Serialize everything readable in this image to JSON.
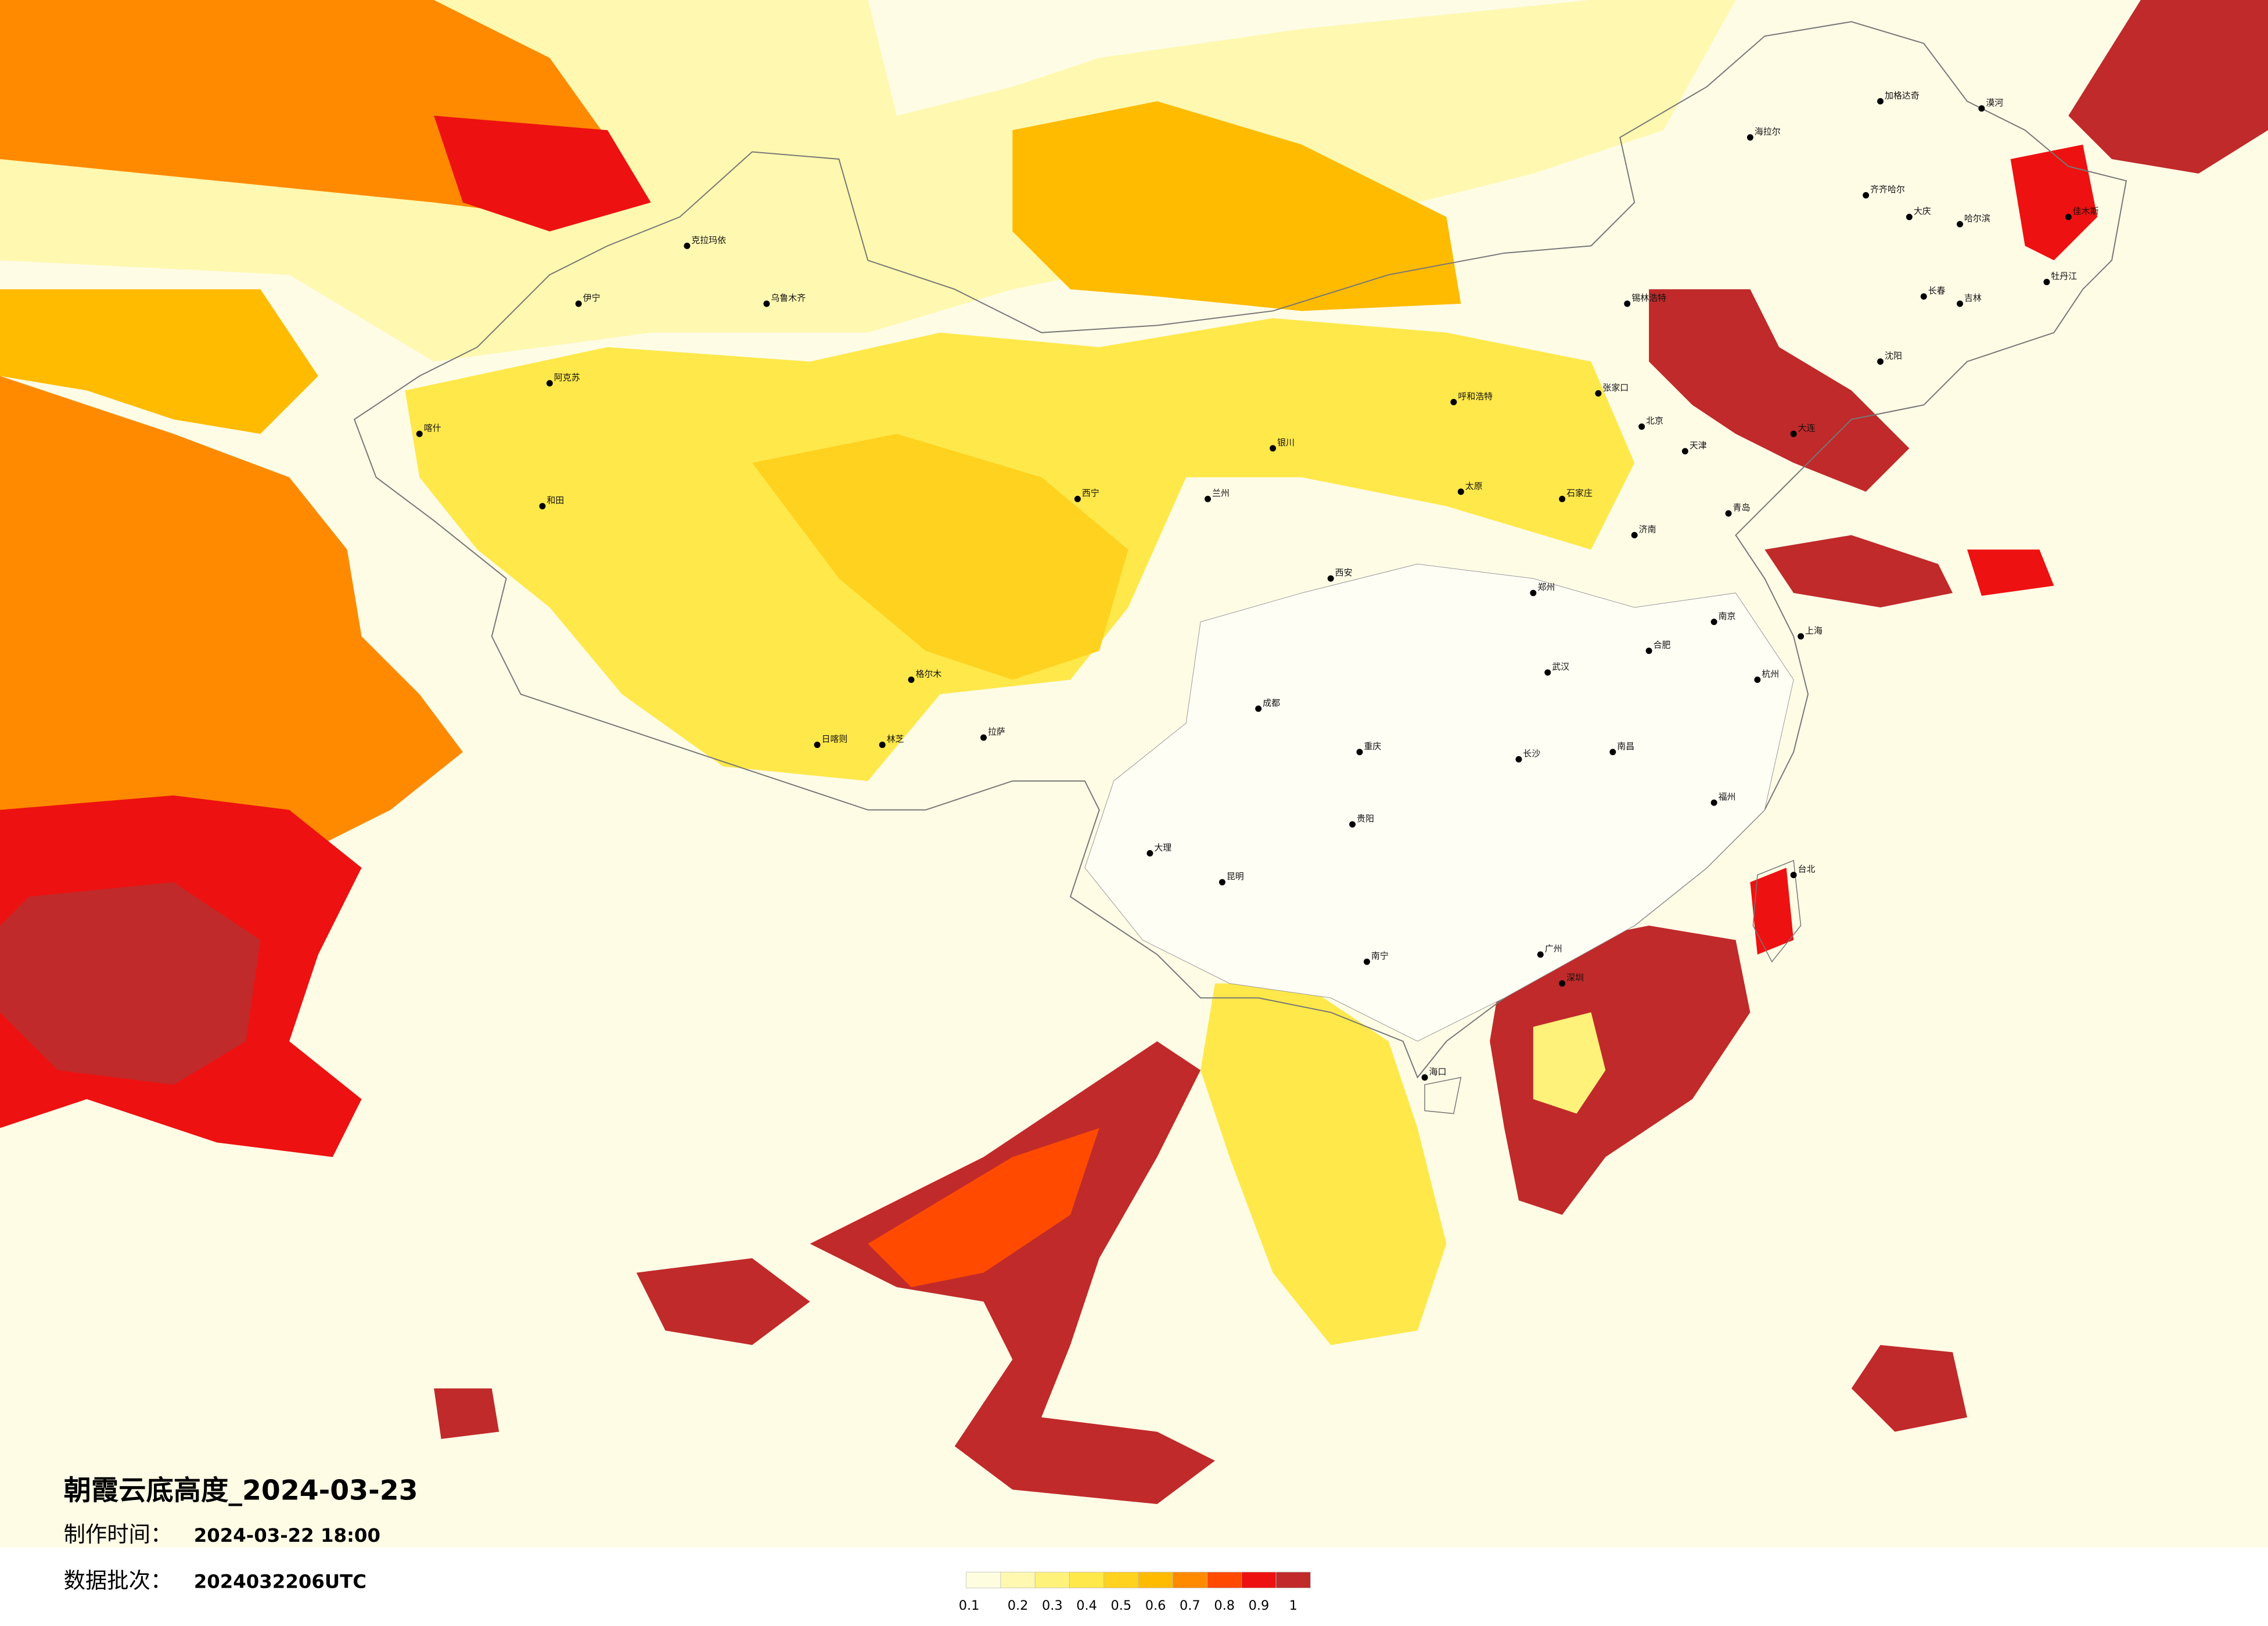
{
  "header": {
    "title": "朝霞云底高度_2024-03-23",
    "made_label": "制作时间：",
    "made_time": "2024-03-22 18:00",
    "batch_label": "数据批次：",
    "batch": "2024032206UTC"
  },
  "legend": {
    "colors": [
      "#fffde0",
      "#fff8b0",
      "#fff27a",
      "#ffe84a",
      "#ffd21f",
      "#ffbb00",
      "#ff8a00",
      "#ff4a00",
      "#ee1111",
      "#c02a2a"
    ],
    "ticks": [
      0.1,
      0.2,
      0.3,
      0.4,
      0.5,
      0.6,
      0.7,
      0.8,
      0.9,
      1
    ]
  },
  "cities": [
    "漠河",
    "加格达奇",
    "海拉尔",
    "齐齐哈尔",
    "大庆",
    "哈尔滨",
    "佳木斯",
    "牡丹江",
    "长春",
    "吉林",
    "沈阳",
    "大连",
    "锡林浩特",
    "呼和浩特",
    "张家口",
    "北京",
    "天津",
    "石家庄",
    "太原",
    "济南",
    "青岛",
    "郑州",
    "西安",
    "兰州",
    "银川",
    "西宁",
    "格尔木",
    "乌鲁木齐",
    "克拉玛依",
    "伊宁",
    "阿克苏",
    "喀什",
    "和田",
    "拉萨",
    "日喀则",
    "林芝",
    "成都",
    "重庆",
    "贵阳",
    "昆明",
    "大理",
    "南宁",
    "广州",
    "深圳",
    "福州",
    "台北",
    "杭州",
    "上海",
    "南京",
    "合肥",
    "武汉",
    "长沙",
    "南昌",
    "海口"
  ]
}
